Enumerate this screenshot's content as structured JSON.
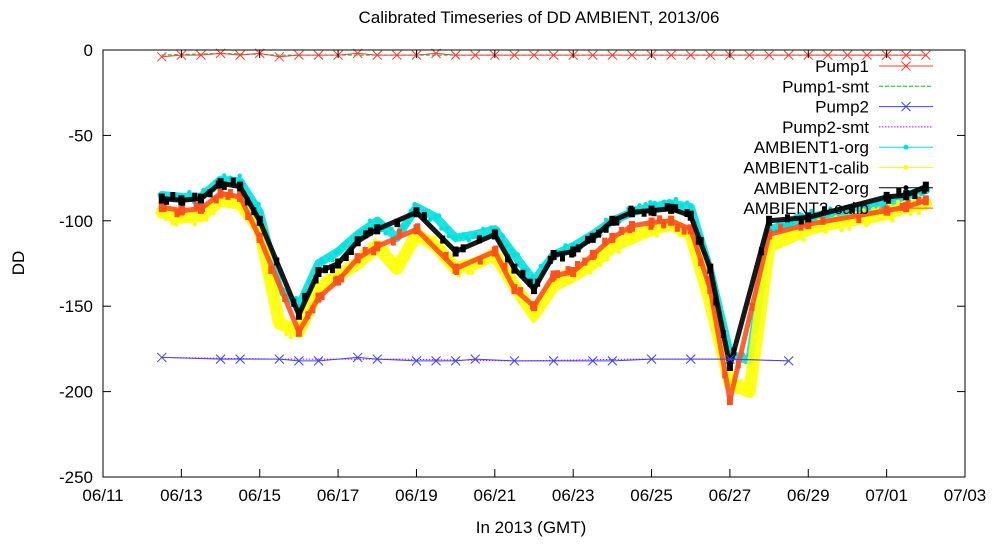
{
  "chart_data": {
    "type": "line",
    "title": "Calibrated Timeseries of DD AMBIENT, 2013/06",
    "xlabel": "In 2013 (GMT)",
    "ylabel": "DD",
    "xlim": [
      "06/11",
      "07/03"
    ],
    "ylim": [
      -250,
      0
    ],
    "x_ticks": [
      "06/11",
      "06/13",
      "06/15",
      "06/17",
      "06/19",
      "06/21",
      "06/23",
      "06/25",
      "06/27",
      "06/29",
      "07/01",
      "07/03"
    ],
    "y_ticks": [
      0,
      -50,
      -100,
      -150,
      -200,
      -250
    ],
    "grid": false,
    "legend_position": "top-right",
    "series": [
      {
        "name": "Pump1",
        "color": "#ff3b2f",
        "style": "x-markers with thin line",
        "x": [
          "06/12 12:00",
          "06/13 00:00",
          "06/13 12:00",
          "06/14 00:00",
          "06/14 12:00",
          "06/15 00:00",
          "06/15 12:00",
          "06/16 00:00",
          "06/16 12:00",
          "06/17 00:00",
          "06/17 12:00",
          "06/18 00:00",
          "06/18 12:00",
          "06/19 00:00",
          "06/19 12:00",
          "06/20 00:00",
          "06/20 12:00",
          "06/21 00:00",
          "06/21 12:00",
          "06/22 00:00",
          "06/22 12:00",
          "06/23 00:00",
          "06/23 12:00",
          "06/24 00:00",
          "06/24 12:00",
          "06/25 00:00",
          "06/25 12:00",
          "06/26 00:00",
          "06/26 12:00",
          "06/27 00:00",
          "06/27 12:00",
          "06/28 00:00",
          "06/28 12:00",
          "06/29 00:00",
          "06/29 12:00",
          "06/30 00:00",
          "06/30 12:00",
          "07/01 00:00",
          "07/01 12:00",
          "07/02 00:00"
        ],
        "y": [
          -4,
          -3,
          -3,
          -2,
          -3,
          -2,
          -4,
          -3,
          -3,
          -3,
          -2,
          -3,
          -3,
          -3,
          -2,
          -3,
          -3,
          -3,
          -3,
          -3,
          -3,
          -3,
          -3,
          -3,
          -3,
          -3,
          -3,
          -3,
          -3,
          -3,
          -3,
          -3,
          -3,
          -3,
          -3,
          -3,
          -3,
          -3,
          -3,
          -3
        ]
      },
      {
        "name": "Pump1-smt",
        "color": "#00c800",
        "style": "dashed",
        "x": [
          "06/12 12:00",
          "06/14 00:00",
          "06/15 12:00",
          "06/17 00:00",
          "06/19 00:00",
          "06/21 00:00",
          "06/23 00:00",
          "06/25 00:00",
          "06/27 00:00",
          "06/29 00:00",
          "07/01 00:00",
          "07/02 00:00"
        ],
        "y": [
          -3,
          -2,
          -3,
          -3,
          -3,
          -3,
          -3,
          -3,
          -3,
          -3,
          -3,
          -3
        ]
      },
      {
        "name": "Pump2",
        "color": "#4040ff",
        "style": "x-markers with thin line",
        "x": [
          "06/12 12:00",
          "06/14 00:00",
          "06/14 12:00",
          "06/15 12:00",
          "06/16 00:00",
          "06/16 12:00",
          "06/17 12:00",
          "06/18 00:00",
          "06/19 00:00",
          "06/19 12:00",
          "06/20 00:00",
          "06/20 12:00",
          "06/21 12:00",
          "06/22 12:00",
          "06/23 12:00",
          "06/24 00:00",
          "06/25 00:00",
          "06/26 00:00",
          "06/27 00:00",
          "06/28 12:00"
        ],
        "y": [
          -180,
          -181,
          -181,
          -181,
          -182,
          -182,
          -180,
          -181,
          -182,
          -182,
          -182,
          -181,
          -182,
          -182,
          -182,
          -182,
          -181,
          -181,
          -181,
          -182
        ]
      },
      {
        "name": "Pump2-smt",
        "color": "#c000ff",
        "style": "dotted",
        "x": [
          "06/12 12:00",
          "06/15 12:00",
          "06/18 12:00",
          "06/21 12:00",
          "06/24 12:00",
          "06/27 00:00",
          "06/28 12:00"
        ],
        "y": [
          -180,
          -181,
          -181,
          -182,
          -181,
          -181,
          -182
        ]
      },
      {
        "name": "AMBIENT1-org",
        "color": "#00e0e0",
        "style": "dense scatter",
        "x": [
          "06/12 12:00",
          "06/13 00:00",
          "06/13 12:00",
          "06/14 00:00",
          "06/14 12:00",
          "06/15 00:00",
          "06/15 12:00",
          "06/16 00:00",
          "06/16 12:00",
          "06/17 00:00",
          "06/17 12:00",
          "06/18 00:00",
          "06/18 12:00",
          "06/19 00:00",
          "06/19 12:00",
          "06/20 00:00",
          "06/20 12:00",
          "06/21 00:00",
          "06/21 12:00",
          "06/22 00:00",
          "06/22 12:00",
          "06/23 00:00",
          "06/23 12:00",
          "06/24 00:00",
          "06/24 12:00",
          "06/25 00:00",
          "06/25 12:00",
          "06/26 00:00",
          "06/26 12:00",
          "06/27 00:00",
          "06/27 12:00",
          "06/28 00:00",
          "06/28 12:00",
          "06/29 00:00",
          "06/29 12:00",
          "06/30 00:00",
          "06/30 12:00",
          "07/01 00:00",
          "07/01 12:00",
          "07/02 00:00"
        ],
        "y": [
          -85,
          -86,
          -86,
          -76,
          -77,
          -95,
          -140,
          -150,
          -125,
          -118,
          -108,
          -100,
          -110,
          -92,
          -98,
          -110,
          -108,
          -105,
          -120,
          -135,
          -120,
          -115,
          -108,
          -100,
          -95,
          -92,
          -90,
          -92,
          -130,
          -178,
          -182,
          -105,
          -102,
          -98,
          -96,
          -94,
          -92,
          -90,
          -85,
          -82
        ]
      },
      {
        "name": "AMBIENT1-calib",
        "color": "#ffff00",
        "style": "dense scatter",
        "x": [
          "06/12 12:00",
          "06/13 00:00",
          "06/13 12:00",
          "06/14 00:00",
          "06/14 12:00",
          "06/15 00:00",
          "06/15 12:00",
          "06/16 00:00",
          "06/16 12:00",
          "06/17 00:00",
          "06/17 12:00",
          "06/18 00:00",
          "06/18 12:00",
          "06/19 00:00",
          "06/19 12:00",
          "06/20 00:00",
          "06/20 12:00",
          "06/21 00:00",
          "06/21 12:00",
          "06/22 00:00",
          "06/22 12:00",
          "06/23 00:00",
          "06/23 12:00",
          "06/24 00:00",
          "06/24 12:00",
          "06/25 00:00",
          "06/25 12:00",
          "06/26 00:00",
          "06/26 12:00",
          "06/27 00:00",
          "06/27 12:00",
          "06/28 00:00",
          "06/28 12:00",
          "06/29 00:00",
          "06/29 12:00",
          "06/30 00:00",
          "06/30 12:00",
          "07/01 00:00",
          "07/01 12:00",
          "07/02 00:00"
        ],
        "y": [
          -95,
          -98,
          -97,
          -88,
          -90,
          -105,
          -160,
          -165,
          -140,
          -132,
          -125,
          -115,
          -128,
          -108,
          -115,
          -128,
          -125,
          -120,
          -138,
          -155,
          -138,
          -132,
          -125,
          -115,
          -110,
          -105,
          -102,
          -108,
          -148,
          -195,
          -200,
          -115,
          -110,
          -105,
          -102,
          -100,
          -98,
          -96,
          -92,
          -90
        ]
      },
      {
        "name": "AMBIENT2-org",
        "color": "#000000",
        "style": "dense scatter",
        "x": [
          "06/12 12:00",
          "06/13 00:00",
          "06/13 12:00",
          "06/14 00:00",
          "06/14 12:00",
          "06/15 00:00",
          "06/16 00:00",
          "06/16 12:00",
          "06/17 00:00",
          "06/17 12:00",
          "06/18 00:00",
          "06/19 00:00",
          "06/20 00:00",
          "06/21 00:00",
          "06/21 12:00",
          "06/22 00:00",
          "06/22 12:00",
          "06/23 00:00",
          "06/23 12:00",
          "06/24 00:00",
          "06/24 12:00",
          "06/25 00:00",
          "06/25 12:00",
          "06/26 00:00",
          "06/26 12:00",
          "06/27 00:00",
          "06/28 00:00",
          "06/29 00:00",
          "07/01 00:00",
          "07/01 12:00",
          "07/02 00:00"
        ],
        "y": [
          -87,
          -88,
          -87,
          -78,
          -80,
          -100,
          -155,
          -130,
          -125,
          -112,
          -105,
          -95,
          -118,
          -108,
          -128,
          -140,
          -120,
          -118,
          -110,
          -100,
          -95,
          -94,
          -93,
          -97,
          -128,
          -185,
          -100,
          -98,
          -86,
          -85,
          -80
        ]
      },
      {
        "name": "AMBIENT2-calib",
        "color": "#ff5020",
        "style": "dense scatter",
        "x": [
          "06/12 12:00",
          "06/13 00:00",
          "06/13 12:00",
          "06/14 00:00",
          "06/14 12:00",
          "06/15 00:00",
          "06/16 00:00",
          "06/16 12:00",
          "06/17 00:00",
          "06/17 12:00",
          "06/18 00:00",
          "06/19 00:00",
          "06/20 00:00",
          "06/21 00:00",
          "06/21 12:00",
          "06/22 00:00",
          "06/22 12:00",
          "06/23 00:00",
          "06/23 12:00",
          "06/24 00:00",
          "06/24 12:00",
          "06/25 00:00",
          "06/25 12:00",
          "06/26 00:00",
          "06/26 12:00",
          "06/27 00:00",
          "06/28 00:00",
          "06/29 00:00",
          "07/01 00:00",
          "07/01 12:00",
          "07/02 00:00"
        ],
        "y": [
          -92,
          -94,
          -93,
          -84,
          -86,
          -110,
          -165,
          -145,
          -135,
          -122,
          -115,
          -105,
          -128,
          -118,
          -140,
          -150,
          -132,
          -130,
          -120,
          -110,
          -103,
          -101,
          -100,
          -105,
          -140,
          -205,
          -108,
          -102,
          -94,
          -92,
          -88
        ]
      }
    ]
  }
}
